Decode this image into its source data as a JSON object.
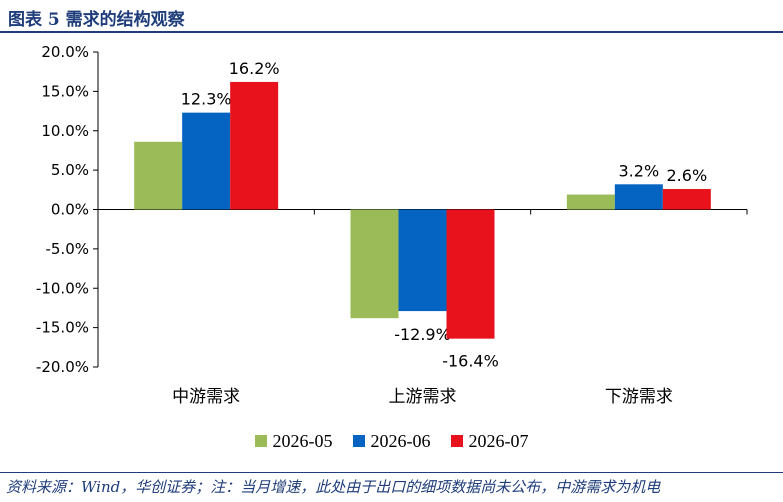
{
  "figure": {
    "title": "图表 5   需求的结构观察",
    "source": "资料来源：Wind，华创证券；注：当月增速，此处由于出口的细项数据尚未公布，中游需求为机电"
  },
  "chart_data": {
    "type": "bar",
    "categories": [
      "中游需求",
      "上游需求",
      "下游需求"
    ],
    "series": [
      {
        "name": "2026-05",
        "color": "#9bbb59",
        "values": [
          8.6,
          -13.8,
          1.9
        ],
        "labels": [
          null,
          null,
          null
        ]
      },
      {
        "name": "2026-06",
        "color": "#0563c1",
        "values": [
          12.3,
          -12.9,
          3.2
        ],
        "labels": [
          "12.3%",
          "-12.9%",
          "3.2%"
        ]
      },
      {
        "name": "2026-07",
        "color": "#e8121c",
        "values": [
          16.2,
          -16.4,
          2.6
        ],
        "labels": [
          "16.2%",
          "-16.4%",
          "2.6%"
        ]
      }
    ],
    "ylim": [
      -20,
      20
    ],
    "yticks": [
      20,
      15,
      10,
      5,
      0,
      -5,
      -10,
      -15,
      -20
    ],
    "ytick_labels": [
      "20.0%",
      "15.0%",
      "10.0%",
      "5.0%",
      "0.0%",
      "-5.0%",
      "-10.0%",
      "-15.0%",
      "-20.0%"
    ],
    "grid": false,
    "legend_position": "bottom"
  }
}
